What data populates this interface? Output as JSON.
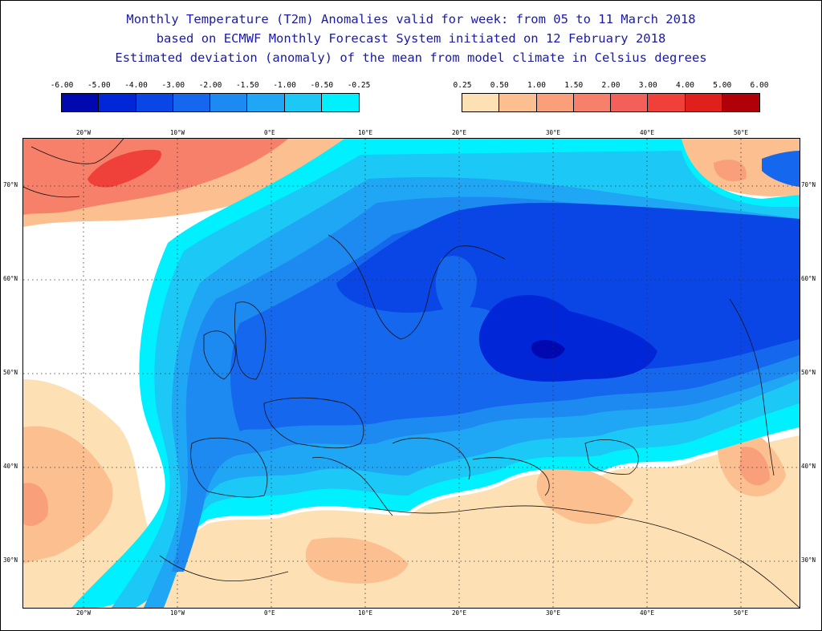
{
  "title": {
    "line1": "Monthly Temperature (T2m) Anomalies valid for week: from 05 to 11 March 2018",
    "line2": "based on ECMWF Monthly Forecast System initiated on 12 February 2018",
    "line3": "Estimated deviation (anomaly) of the mean from model climate in Celsius degrees"
  },
  "legend_negative": {
    "labels": [
      "-6.00",
      "-5.00",
      "-4.00",
      "-3.00",
      "-2.00",
      "-1.50",
      "-1.00",
      "-0.50",
      "-0.25"
    ],
    "colors": [
      "#0008b0",
      "#0026d8",
      "#0a45e6",
      "#1567ee",
      "#1d8af2",
      "#1fa6f4",
      "#1bc8f6",
      "#00f0ff"
    ]
  },
  "legend_positive": {
    "labels": [
      "0.25",
      "0.50",
      "1.00",
      "1.50",
      "2.00",
      "3.00",
      "4.00",
      "5.00",
      "6.00"
    ],
    "colors": [
      "#fde0b4",
      "#fbbf90",
      "#f9a07a",
      "#f6806a",
      "#f3605a",
      "#f0403a",
      "#e0201c",
      "#b00008"
    ]
  },
  "map": {
    "lon_labels": [
      "20°W",
      "10°W",
      "0°E",
      "10°E",
      "20°E",
      "30°E",
      "40°E",
      "50°E"
    ],
    "lat_labels": [
      "70°N",
      "60°N",
      "50°N",
      "40°N",
      "30°N"
    ]
  }
}
